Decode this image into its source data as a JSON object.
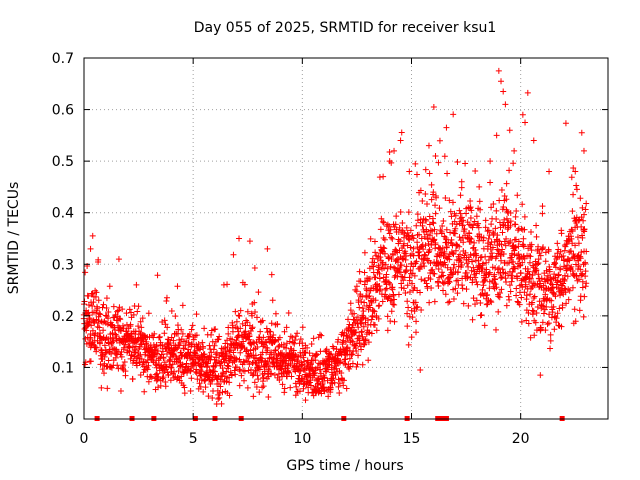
{
  "chart_data": {
    "type": "scatter",
    "title": "Day 055 of 2025, SRMTID for receiver ksu1",
    "xlabel": "GPS time / hours",
    "ylabel": "SRMTID / TECUs",
    "xlim": [
      0,
      24
    ],
    "ylim": [
      0,
      0.7
    ],
    "x_ticks": [
      0,
      5,
      10,
      15,
      20
    ],
    "y_ticks": [
      0,
      0.1,
      0.2,
      0.3,
      0.4,
      0.5,
      0.6,
      0.7
    ],
    "x_tick_labels": [
      "0",
      "5",
      "10",
      "15",
      "20"
    ],
    "y_tick_labels": [
      "0",
      "0.1",
      "0.2",
      "0.3",
      "0.4",
      "0.5",
      "0.6",
      "0.7"
    ],
    "grid": true,
    "marker": "plus",
    "color": "#ff0000",
    "baseline_markers_x": [
      0.6,
      2.2,
      3.2,
      5.1,
      6.0,
      7.2,
      11.9,
      14.8,
      16.2,
      16.4,
      16.6,
      21.9
    ],
    "trend": [
      {
        "x": 0.0,
        "y": 0.19
      },
      {
        "x": 0.5,
        "y": 0.18
      },
      {
        "x": 1.0,
        "y": 0.13
      },
      {
        "x": 1.5,
        "y": 0.15
      },
      {
        "x": 2.0,
        "y": 0.15
      },
      {
        "x": 2.5,
        "y": 0.14
      },
      {
        "x": 3.0,
        "y": 0.12
      },
      {
        "x": 3.5,
        "y": 0.11
      },
      {
        "x": 4.0,
        "y": 0.12
      },
      {
        "x": 4.5,
        "y": 0.12
      },
      {
        "x": 5.0,
        "y": 0.12
      },
      {
        "x": 5.5,
        "y": 0.1
      },
      {
        "x": 6.0,
        "y": 0.1
      },
      {
        "x": 6.5,
        "y": 0.1
      },
      {
        "x": 7.0,
        "y": 0.14
      },
      {
        "x": 7.5,
        "y": 0.13
      },
      {
        "x": 8.0,
        "y": 0.12
      },
      {
        "x": 8.5,
        "y": 0.13
      },
      {
        "x": 9.0,
        "y": 0.12
      },
      {
        "x": 9.5,
        "y": 0.11
      },
      {
        "x": 10.0,
        "y": 0.09
      },
      {
        "x": 10.5,
        "y": 0.08
      },
      {
        "x": 11.0,
        "y": 0.08
      },
      {
        "x": 11.5,
        "y": 0.1
      },
      {
        "x": 12.0,
        "y": 0.13
      },
      {
        "x": 12.5,
        "y": 0.17
      },
      {
        "x": 13.0,
        "y": 0.21
      },
      {
        "x": 13.5,
        "y": 0.27
      },
      {
        "x": 14.0,
        "y": 0.29
      },
      {
        "x": 14.5,
        "y": 0.31
      },
      {
        "x": 15.0,
        "y": 0.27
      },
      {
        "x": 15.5,
        "y": 0.33
      },
      {
        "x": 16.0,
        "y": 0.34
      },
      {
        "x": 16.5,
        "y": 0.3
      },
      {
        "x": 17.0,
        "y": 0.32
      },
      {
        "x": 17.5,
        "y": 0.33
      },
      {
        "x": 18.0,
        "y": 0.3
      },
      {
        "x": 18.5,
        "y": 0.28
      },
      {
        "x": 19.0,
        "y": 0.3
      },
      {
        "x": 19.5,
        "y": 0.33
      },
      {
        "x": 20.0,
        "y": 0.29
      },
      {
        "x": 20.5,
        "y": 0.26
      },
      {
        "x": 21.0,
        "y": 0.25
      },
      {
        "x": 21.5,
        "y": 0.24
      },
      {
        "x": 22.0,
        "y": 0.29
      },
      {
        "x": 22.5,
        "y": 0.31
      },
      {
        "x": 23.0,
        "y": 0.3
      }
    ],
    "spread": [
      {
        "x": 0.0,
        "s": 0.07
      },
      {
        "x": 2.0,
        "s": 0.06
      },
      {
        "x": 5.0,
        "s": 0.045
      },
      {
        "x": 7.0,
        "s": 0.07
      },
      {
        "x": 9.0,
        "s": 0.055
      },
      {
        "x": 10.5,
        "s": 0.04
      },
      {
        "x": 12.0,
        "s": 0.05
      },
      {
        "x": 13.5,
        "s": 0.09
      },
      {
        "x": 15.0,
        "s": 0.1
      },
      {
        "x": 17.0,
        "s": 0.08
      },
      {
        "x": 19.0,
        "s": 0.11
      },
      {
        "x": 21.0,
        "s": 0.08
      },
      {
        "x": 23.0,
        "s": 0.09
      }
    ],
    "outliers": [
      {
        "x": 0.4,
        "y": 0.355
      },
      {
        "x": 0.3,
        "y": 0.33
      },
      {
        "x": 1.6,
        "y": 0.31
      },
      {
        "x": 2.4,
        "y": 0.26
      },
      {
        "x": 3.8,
        "y": 0.235
      },
      {
        "x": 7.1,
        "y": 0.35
      },
      {
        "x": 7.6,
        "y": 0.345
      },
      {
        "x": 8.4,
        "y": 0.33
      },
      {
        "x": 8.6,
        "y": 0.28
      },
      {
        "x": 13.7,
        "y": 0.47
      },
      {
        "x": 14.0,
        "y": 0.5
      },
      {
        "x": 14.2,
        "y": 0.52
      },
      {
        "x": 14.5,
        "y": 0.54
      },
      {
        "x": 14.9,
        "y": 0.48
      },
      {
        "x": 15.4,
        "y": 0.095
      },
      {
        "x": 15.8,
        "y": 0.53
      },
      {
        "x": 16.1,
        "y": 0.51
      },
      {
        "x": 16.0,
        "y": 0.44
      },
      {
        "x": 16.6,
        "y": 0.565
      },
      {
        "x": 16.9,
        "y": 0.42
      },
      {
        "x": 17.3,
        "y": 0.46
      },
      {
        "x": 17.6,
        "y": 0.41
      },
      {
        "x": 18.1,
        "y": 0.45
      },
      {
        "x": 18.6,
        "y": 0.5
      },
      {
        "x": 18.9,
        "y": 0.55
      },
      {
        "x": 19.0,
        "y": 0.675
      },
      {
        "x": 19.1,
        "y": 0.655
      },
      {
        "x": 19.2,
        "y": 0.635
      },
      {
        "x": 19.3,
        "y": 0.61
      },
      {
        "x": 19.5,
        "y": 0.56
      },
      {
        "x": 19.7,
        "y": 0.52
      },
      {
        "x": 20.1,
        "y": 0.59
      },
      {
        "x": 20.2,
        "y": 0.575
      },
      {
        "x": 20.6,
        "y": 0.54
      },
      {
        "x": 20.9,
        "y": 0.085
      },
      {
        "x": 21.3,
        "y": 0.48
      },
      {
        "x": 22.4,
        "y": 0.435
      },
      {
        "x": 22.5,
        "y": 0.48
      },
      {
        "x": 22.8,
        "y": 0.555
      },
      {
        "x": 22.9,
        "y": 0.52
      }
    ]
  }
}
